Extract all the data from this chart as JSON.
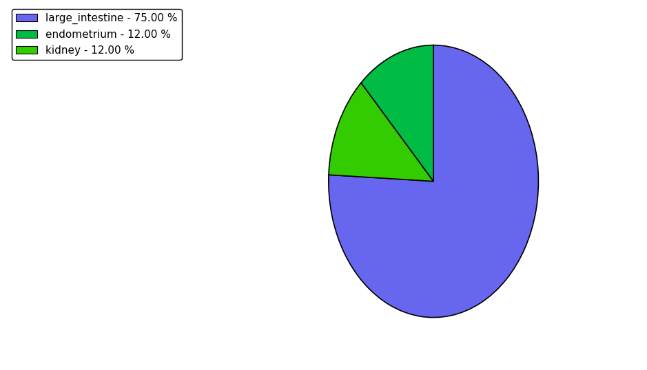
{
  "labels": [
    "large_intestine",
    "endometrium",
    "kidney"
  ],
  "values": [
    75.0,
    12.0,
    12.0
  ],
  "colors": [
    "#6666ee",
    "#00bb44",
    "#33cc00"
  ],
  "legend_labels": [
    "large_intestine - 75.00 %",
    "endometrium - 12.00 %",
    "kidney - 12.00 %"
  ],
  "background_color": "#ffffff",
  "startangle": 90,
  "figsize": [
    9.39,
    5.38
  ],
  "dpi": 100
}
